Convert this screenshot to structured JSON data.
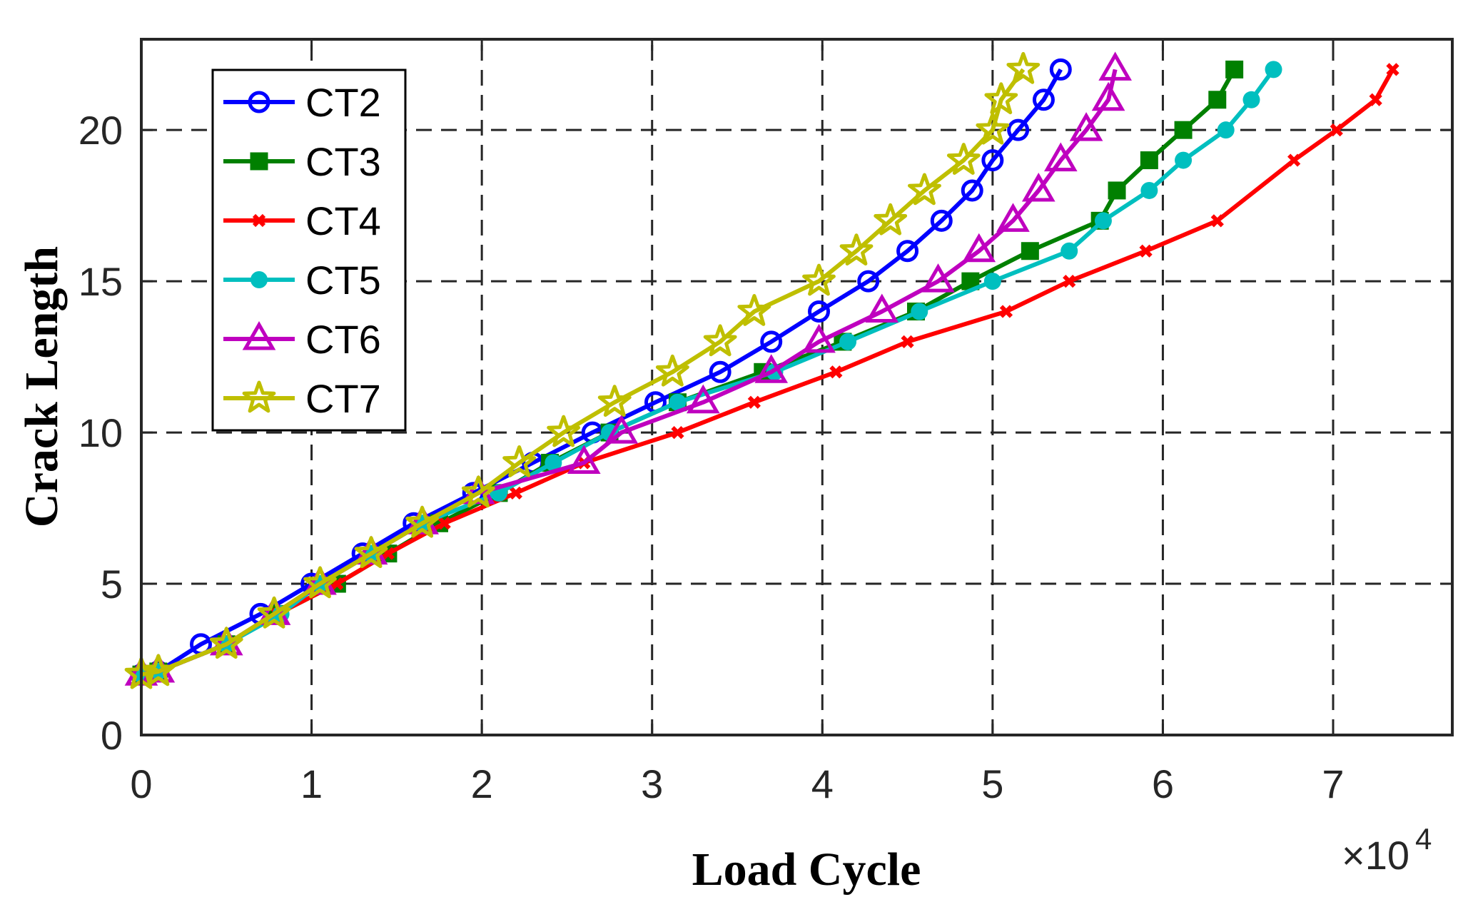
{
  "chart_data": {
    "type": "line",
    "title": "",
    "xlabel": "Load Cycle",
    "ylabel": "Crack Length",
    "x_multiplier": "×10",
    "x_multiplier_exp": "4",
    "xlim": [
      0,
      7.7
    ],
    "ylim": [
      0,
      23
    ],
    "grid": true,
    "legend_position": "top-left",
    "xticks": [
      "0",
      "1",
      "2",
      "3",
      "4",
      "5",
      "6",
      "7"
    ],
    "yticks": [
      "0",
      "5",
      "10",
      "15",
      "20"
    ],
    "series": [
      {
        "name": "CT2",
        "color": "#0000ff",
        "marker": "circle",
        "x": [
          0,
          0.1,
          0.35,
          0.7,
          1.0,
          1.3,
          1.6,
          1.95,
          2.3,
          2.65,
          3.02,
          3.4,
          3.7,
          3.98,
          4.27,
          4.5,
          4.7,
          4.88,
          5.0,
          5.15,
          5.3,
          5.4
        ],
        "y": [
          2,
          2.1,
          3,
          4,
          5,
          6,
          7,
          8,
          9,
          10,
          11,
          12,
          13,
          14,
          15,
          16,
          17,
          18,
          19,
          20,
          21,
          22
        ]
      },
      {
        "name": "CT3",
        "color": "#008000",
        "marker": "square",
        "x": [
          0,
          0.1,
          0.5,
          0.8,
          1.15,
          1.45,
          1.75,
          2.1,
          2.4,
          2.75,
          3.15,
          3.65,
          4.12,
          4.55,
          4.87,
          5.22,
          5.63,
          5.73,
          5.92,
          6.12,
          6.32,
          6.42
        ],
        "y": [
          2,
          2.1,
          3,
          4,
          5,
          6,
          7,
          8,
          9,
          10,
          11,
          12,
          13,
          14,
          15,
          16,
          17,
          18,
          19,
          20,
          21,
          22
        ]
      },
      {
        "name": "CT4",
        "color": "#ff0000",
        "marker": "x",
        "x": [
          0,
          0.1,
          0.5,
          0.8,
          1.15,
          1.45,
          1.78,
          2.2,
          2.6,
          3.15,
          3.6,
          4.08,
          4.5,
          5.08,
          5.45,
          5.9,
          6.32,
          6.77,
          7.02,
          7.25,
          7.35
        ],
        "y": [
          2,
          2.1,
          3,
          4,
          5,
          6,
          7,
          8,
          9,
          10,
          11,
          12,
          13,
          14,
          15,
          16,
          17,
          19,
          20,
          21,
          22
        ]
      },
      {
        "name": "CT5",
        "color": "#00bfbf",
        "marker": "dot",
        "x": [
          0,
          0.1,
          0.5,
          0.82,
          1.05,
          1.35,
          1.65,
          2.1,
          2.42,
          2.75,
          3.15,
          3.72,
          4.15,
          4.57,
          5.0,
          5.45,
          5.65,
          5.92,
          6.12,
          6.37,
          6.52,
          6.65
        ],
        "y": [
          2,
          2.1,
          3,
          4,
          5,
          6,
          7,
          8,
          9,
          10,
          11,
          12,
          13,
          14,
          15,
          16,
          17,
          18,
          19,
          20,
          21,
          22
        ]
      },
      {
        "name": "CT6",
        "color": "#bf00bf",
        "marker": "triangle",
        "x": [
          0,
          0.1,
          0.5,
          0.78,
          1.05,
          1.35,
          1.65,
          1.98,
          2.6,
          2.82,
          3.3,
          3.7,
          3.98,
          4.35,
          4.68,
          4.92,
          5.12,
          5.27,
          5.4,
          5.55,
          5.68,
          5.72
        ],
        "y": [
          2,
          2.1,
          3,
          4,
          5,
          6,
          7,
          8,
          9,
          10,
          11,
          12,
          13,
          14,
          15,
          16,
          17,
          18,
          19,
          20,
          21,
          22
        ]
      },
      {
        "name": "CT7",
        "color": "#bfbf00",
        "marker": "star",
        "x": [
          0,
          0.1,
          0.5,
          0.78,
          1.05,
          1.35,
          1.65,
          1.98,
          2.22,
          2.48,
          2.78,
          3.12,
          3.4,
          3.6,
          3.98,
          4.2,
          4.4,
          4.6,
          4.83,
          5.0,
          5.05,
          5.18
        ],
        "y": [
          2,
          2.1,
          3,
          4,
          5,
          6,
          7,
          8,
          9,
          10,
          11,
          12,
          13,
          14,
          15,
          16,
          17,
          18,
          19,
          20,
          21,
          22
        ]
      }
    ]
  }
}
